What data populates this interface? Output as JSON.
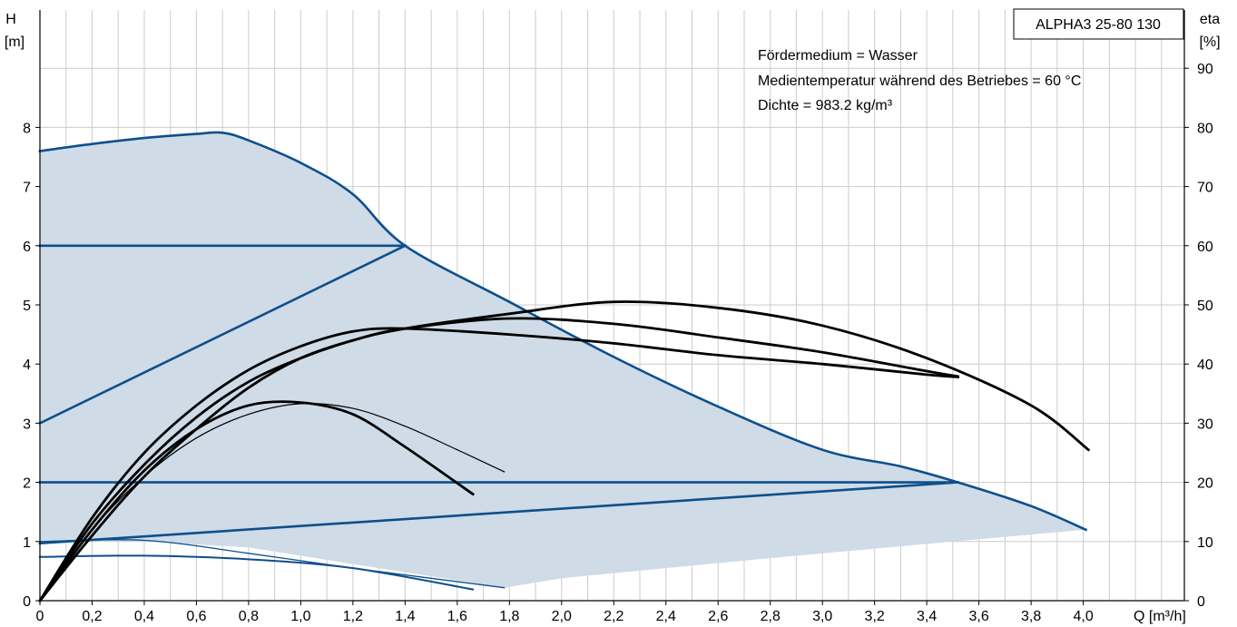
{
  "chart_data": {
    "type": "line",
    "title": "ALPHA3 25-80 130",
    "ylabel": "H",
    "yunit": "[m]",
    "y2label": "eta",
    "y2unit": "[%]",
    "xlabel": "Q [m³/h]",
    "xlim": [
      0,
      4.4
    ],
    "ylim": [
      0,
      9.2
    ],
    "y2lim": [
      0,
      92
    ],
    "grid": true,
    "x_ticks": [
      {
        "v": 0,
        "label": "0"
      },
      {
        "v": 0.2,
        "label": "0,2"
      },
      {
        "v": 0.4,
        "label": "0,4"
      },
      {
        "v": 0.6,
        "label": "0,6"
      },
      {
        "v": 0.8,
        "label": "0,8"
      },
      {
        "v": 1.0,
        "label": "1,0"
      },
      {
        "v": 1.2,
        "label": "1,2"
      },
      {
        "v": 1.4,
        "label": "1,4"
      },
      {
        "v": 1.6,
        "label": "1,6"
      },
      {
        "v": 1.8,
        "label": "1,8"
      },
      {
        "v": 2.0,
        "label": "2,0"
      },
      {
        "v": 2.2,
        "label": "2,2"
      },
      {
        "v": 2.4,
        "label": "2,4"
      },
      {
        "v": 2.6,
        "label": "2,6"
      },
      {
        "v": 2.8,
        "label": "2,8"
      },
      {
        "v": 3.0,
        "label": "3,0"
      },
      {
        "v": 3.2,
        "label": "3,2"
      },
      {
        "v": 3.4,
        "label": "3,4"
      },
      {
        "v": 3.6,
        "label": "3,6"
      },
      {
        "v": 3.8,
        "label": "3,8"
      },
      {
        "v": 4.0,
        "label": "4,0"
      }
    ],
    "y_ticks": [
      {
        "v": 0,
        "label": "0"
      },
      {
        "v": 1,
        "label": "1"
      },
      {
        "v": 2,
        "label": "2"
      },
      {
        "v": 3,
        "label": "3"
      },
      {
        "v": 4,
        "label": "4"
      },
      {
        "v": 5,
        "label": "5"
      },
      {
        "v": 6,
        "label": "6"
      },
      {
        "v": 7,
        "label": "7"
      },
      {
        "v": 8,
        "label": "8"
      }
    ],
    "y2_ticks": [
      {
        "v": 0,
        "label": "0"
      },
      {
        "v": 10,
        "label": "10"
      },
      {
        "v": 20,
        "label": "20"
      },
      {
        "v": 30,
        "label": "30"
      },
      {
        "v": 40,
        "label": "40"
      },
      {
        "v": 50,
        "label": "50"
      },
      {
        "v": 60,
        "label": "60"
      },
      {
        "v": 70,
        "label": "70"
      },
      {
        "v": 80,
        "label": "80"
      },
      {
        "v": 90,
        "label": "90"
      }
    ],
    "annotations": [
      "Fördermedium = Wasser",
      "Medientemperatur während des Betriebes = 60 °C",
      "Dichte = 983.2 kg/m³"
    ],
    "operating_area": {
      "color": "#cfdbe7",
      "boundary": [
        [
          0,
          7.6
        ],
        [
          0.2,
          7.72
        ],
        [
          0.4,
          7.82
        ],
        [
          0.6,
          7.89
        ],
        [
          0.7,
          7.91
        ],
        [
          0.8,
          7.78
        ],
        [
          1.0,
          7.4
        ],
        [
          1.2,
          6.87
        ],
        [
          1.4,
          6.0
        ],
        [
          1.8,
          5.05
        ],
        [
          2.2,
          4.12
        ],
        [
          2.6,
          3.28
        ],
        [
          3.0,
          2.55
        ],
        [
          3.3,
          2.27
        ],
        [
          3.52,
          2.0
        ],
        [
          3.8,
          1.6
        ],
        [
          4.01,
          1.2
        ],
        [
          3.6,
          1.04
        ],
        [
          3.2,
          0.88
        ],
        [
          2.8,
          0.72
        ],
        [
          2.4,
          0.55
        ],
        [
          2.0,
          0.38
        ],
        [
          1.78,
          0.22
        ],
        [
          1.2,
          0.62
        ],
        [
          0.8,
          0.9
        ],
        [
          0.4,
          1.0
        ],
        [
          0,
          1.0
        ]
      ]
    },
    "series": [
      {
        "kind": "head",
        "color": "#0d4f8b",
        "width": 2.6,
        "points": [
          [
            0,
            7.6
          ],
          [
            0.2,
            7.72
          ],
          [
            0.4,
            7.82
          ],
          [
            0.6,
            7.89
          ],
          [
            0.7,
            7.91
          ],
          [
            0.8,
            7.78
          ],
          [
            1.0,
            7.4
          ],
          [
            1.2,
            6.87
          ],
          [
            1.4,
            6.0
          ],
          [
            1.8,
            5.05
          ],
          [
            2.2,
            4.12
          ],
          [
            2.6,
            3.28
          ],
          [
            3.0,
            2.55
          ],
          [
            3.3,
            2.27
          ],
          [
            3.52,
            2.0
          ],
          [
            3.8,
            1.6
          ],
          [
            4.01,
            1.2
          ]
        ]
      },
      {
        "kind": "head",
        "color": "#0d4f8b",
        "width": 2.6,
        "points": [
          [
            0,
            6.0
          ],
          [
            1.4,
            6.0
          ]
        ]
      },
      {
        "kind": "head",
        "color": "#0d4f8b",
        "width": 2.6,
        "points": [
          [
            0,
            3.0
          ],
          [
            1.4,
            6.0
          ]
        ]
      },
      {
        "kind": "head",
        "color": "#0d4f8b",
        "width": 2.6,
        "points": [
          [
            0,
            2.0
          ],
          [
            3.52,
            2.0
          ]
        ]
      },
      {
        "kind": "head",
        "color": "#0d4f8b",
        "width": 2.6,
        "points": [
          [
            0,
            0.97
          ],
          [
            3.52,
            2.0
          ]
        ]
      },
      {
        "kind": "head",
        "color": "#0d4f8b",
        "width": 2.0,
        "points": [
          [
            0,
            0.74
          ],
          [
            0.4,
            0.76
          ],
          [
            0.8,
            0.7
          ],
          [
            1.2,
            0.55
          ],
          [
            1.66,
            0.19
          ]
        ]
      },
      {
        "kind": "head",
        "color": "#0d4f8b",
        "width": 1.3,
        "points": [
          [
            0,
            1.0
          ],
          [
            0.4,
            1.02
          ],
          [
            0.8,
            0.8
          ],
          [
            1.2,
            0.55
          ],
          [
            1.78,
            0.22
          ]
        ]
      },
      {
        "kind": "eta",
        "color": "#000000",
        "width": 2.8,
        "points": [
          [
            0,
            0
          ],
          [
            0.2,
            12
          ],
          [
            0.4,
            22
          ],
          [
            0.6,
            29
          ],
          [
            0.8,
            33
          ],
          [
            1.0,
            33.5
          ],
          [
            1.2,
            31.5
          ],
          [
            1.4,
            26
          ],
          [
            1.66,
            18
          ]
        ]
      },
      {
        "kind": "eta",
        "color": "#000000",
        "width": 1.2,
        "points": [
          [
            0,
            0
          ],
          [
            0.2,
            12
          ],
          [
            0.4,
            21
          ],
          [
            0.6,
            27.5
          ],
          [
            0.8,
            31.5
          ],
          [
            1.0,
            33.3
          ],
          [
            1.2,
            32.5
          ],
          [
            1.4,
            29.5
          ],
          [
            1.6,
            25.5
          ],
          [
            1.78,
            21.8
          ]
        ]
      },
      {
        "kind": "eta",
        "color": "#000000",
        "width": 2.8,
        "points": [
          [
            0,
            0
          ],
          [
            0.2,
            14
          ],
          [
            0.4,
            25
          ],
          [
            0.6,
            33
          ],
          [
            0.8,
            39
          ],
          [
            1.0,
            43
          ],
          [
            1.2,
            45.5
          ],
          [
            1.4,
            46
          ],
          [
            1.8,
            45
          ],
          [
            2.2,
            43.5
          ],
          [
            2.6,
            41.5
          ],
          [
            3.0,
            40
          ],
          [
            3.4,
            38.2
          ],
          [
            3.52,
            37.8
          ]
        ]
      },
      {
        "kind": "eta",
        "color": "#000000",
        "width": 2.8,
        "points": [
          [
            0,
            0
          ],
          [
            0.2,
            13
          ],
          [
            0.4,
            23
          ],
          [
            0.6,
            31
          ],
          [
            0.8,
            37
          ],
          [
            1.0,
            41
          ],
          [
            1.2,
            44
          ],
          [
            1.4,
            46
          ],
          [
            1.8,
            47.7
          ],
          [
            2.2,
            46.8
          ],
          [
            2.6,
            44.5
          ],
          [
            3.0,
            42
          ],
          [
            3.4,
            38.8
          ],
          [
            3.52,
            37.9
          ]
        ]
      },
      {
        "kind": "eta",
        "color": "#000000",
        "width": 2.8,
        "points": [
          [
            0,
            0
          ],
          [
            0.2,
            11
          ],
          [
            0.4,
            21
          ],
          [
            0.6,
            29
          ],
          [
            0.8,
            36
          ],
          [
            1.0,
            41
          ],
          [
            1.2,
            44
          ],
          [
            1.4,
            46
          ],
          [
            1.8,
            48.5
          ],
          [
            2.2,
            50.5
          ],
          [
            2.6,
            49.5
          ],
          [
            3.0,
            46.5
          ],
          [
            3.4,
            41
          ],
          [
            3.8,
            33
          ],
          [
            4.02,
            25.5
          ]
        ]
      }
    ]
  }
}
